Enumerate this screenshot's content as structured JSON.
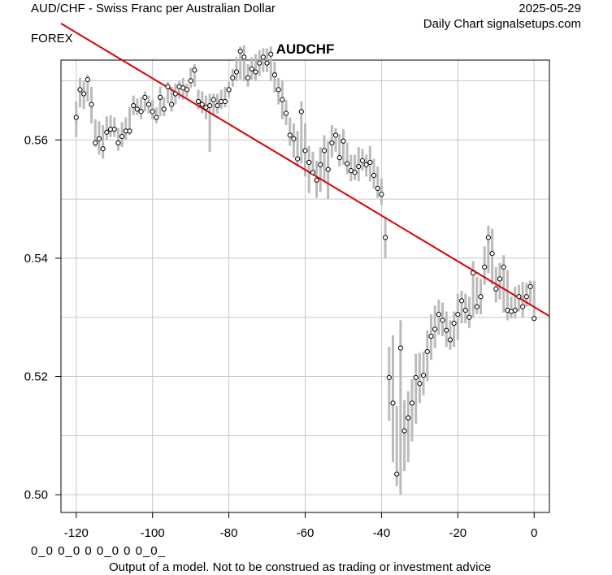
{
  "header": {
    "title_left": "AUD/CHF - Swiss Franc per Australian Dollar",
    "date": "2025-05-29",
    "subtitle_right": "Daily Chart signalsetups.com",
    "category": "FOREX"
  },
  "footer": {
    "code": "0_0 0_0 0 0_0 0 0_0_",
    "disclaimer": "Output of a model. Not to be construed as trading or investment advice"
  },
  "colors": {
    "trend": "#dd0000",
    "bars": "#bbbbbb",
    "grid": "#c8c8c8",
    "points": "#000000"
  },
  "chart_data": {
    "type": "scatter",
    "title": "AUDCHF",
    "xlabel": "",
    "ylabel": "",
    "xlim": [
      -124,
      4
    ],
    "ylim": [
      0.497,
      0.5735
    ],
    "xticks": [
      -120,
      -100,
      -80,
      -60,
      -40,
      -20,
      0
    ],
    "xtick_labels": [
      "-120",
      "-100",
      "-80",
      "-60",
      "-40",
      "-20",
      "0"
    ],
    "yticks": [
      0.5,
      0.52,
      0.54,
      0.56
    ],
    "ytick_labels": [
      "0.50",
      "0.52",
      "0.54",
      "0.56"
    ],
    "grid": true,
    "trend_line": {
      "x": [
        -124,
        4
      ],
      "y": [
        0.5797,
        0.5302
      ]
    },
    "series": [
      {
        "x": [
          -120,
          -119,
          -118,
          -117,
          -116,
          -115,
          -114,
          -113,
          -112,
          -111,
          -110,
          -109,
          -108,
          -107,
          -106,
          -105,
          -104,
          -103,
          -102,
          -101,
          -100,
          -99,
          -98,
          -97,
          -96,
          -95,
          -94,
          -93,
          -92,
          -91,
          -90,
          -89,
          -88,
          -87,
          -86,
          -85,
          -84,
          -83,
          -82,
          -81,
          -80,
          -79,
          -78,
          -77,
          -76,
          -75,
          -74,
          -73,
          -72,
          -71,
          -70,
          -69,
          -68,
          -67,
          -66,
          -65,
          -64,
          -63,
          -62,
          -61,
          -60,
          -59,
          -58,
          -57,
          -56,
          -55,
          -54,
          -53,
          -52,
          -51,
          -50,
          -49,
          -48,
          -47,
          -46,
          -45,
          -44,
          -43,
          -42,
          -41,
          -40,
          -39,
          -38,
          -37,
          -36,
          -35,
          -34,
          -33,
          -32,
          -31,
          -30,
          -29,
          -28,
          -27,
          -26,
          -25,
          -24,
          -23,
          -22,
          -21,
          -20,
          -19,
          -18,
          -17,
          -16,
          -15,
          -14,
          -13,
          -12,
          -11,
          -10,
          -9,
          -8,
          -7,
          -6,
          -5,
          -4,
          -3,
          -2,
          -1,
          0
        ],
        "close": [
          0.5638,
          0.5685,
          0.5678,
          0.5702,
          0.566,
          0.5595,
          0.5602,
          0.5585,
          0.5613,
          0.5618,
          0.5618,
          0.5595,
          0.5606,
          0.5615,
          0.5615,
          0.5658,
          0.5652,
          0.5648,
          0.5672,
          0.566,
          0.5648,
          0.5638,
          0.5672,
          0.5652,
          0.569,
          0.566,
          0.5678,
          0.569,
          0.5688,
          0.5685,
          0.57,
          0.5718,
          0.5665,
          0.566,
          0.5655,
          0.5658,
          0.5668,
          0.5658,
          0.5665,
          0.5665,
          0.5685,
          0.5705,
          0.5715,
          0.575,
          0.574,
          0.5705,
          0.572,
          0.5715,
          0.573,
          0.574,
          0.573,
          0.5745,
          0.571,
          0.5685,
          0.5668,
          0.5645,
          0.5608,
          0.5602,
          0.5568,
          0.5648,
          0.5582,
          0.5562,
          0.5545,
          0.5532,
          0.5558,
          0.5582,
          0.555,
          0.5595,
          0.5608,
          0.557,
          0.5598,
          0.556,
          0.5548,
          0.5545,
          0.5555,
          0.5565,
          0.5558,
          0.5562,
          0.554,
          0.5518,
          0.5508,
          0.5435,
          0.5198,
          0.5155,
          0.5035,
          0.5248,
          0.5108,
          0.513,
          0.5155,
          0.5198,
          0.5188,
          0.5202,
          0.5242,
          0.5268,
          0.528,
          0.5305,
          0.5295,
          0.5278,
          0.5262,
          0.529,
          0.5305,
          0.5328,
          0.5312,
          0.53,
          0.5375,
          0.5318,
          0.5335,
          0.5385,
          0.5435,
          0.5408,
          0.5348,
          0.5365,
          0.5385,
          0.5312,
          0.531,
          0.5312,
          0.5335,
          0.5318,
          0.5335,
          0.5352,
          0.5298
        ],
        "high": [
          0.5665,
          0.5705,
          0.57,
          0.571,
          0.569,
          0.5635,
          0.5632,
          0.5625,
          0.564,
          0.5642,
          0.5638,
          0.562,
          0.563,
          0.5638,
          0.5655,
          0.5675,
          0.567,
          0.5672,
          0.5682,
          0.5675,
          0.5668,
          0.5655,
          0.569,
          0.5672,
          0.5698,
          0.569,
          0.5695,
          0.57,
          0.5705,
          0.5695,
          0.5722,
          0.5728,
          0.5685,
          0.5682,
          0.5675,
          0.5678,
          0.5678,
          0.5678,
          0.5685,
          0.569,
          0.5698,
          0.572,
          0.574,
          0.5758,
          0.576,
          0.5728,
          0.574,
          0.5745,
          0.5752,
          0.5755,
          0.5755,
          0.5758,
          0.5732,
          0.5705,
          0.57,
          0.5668,
          0.5638,
          0.5628,
          0.5615,
          0.5665,
          0.5628,
          0.559,
          0.558,
          0.5565,
          0.5588,
          0.5608,
          0.5598,
          0.5625,
          0.562,
          0.561,
          0.5618,
          0.5595,
          0.5575,
          0.5575,
          0.5588,
          0.5585,
          0.5575,
          0.559,
          0.5568,
          0.5555,
          0.5535,
          0.547,
          0.525,
          0.527,
          0.515,
          0.5295,
          0.516,
          0.5175,
          0.5195,
          0.5238,
          0.524,
          0.5242,
          0.5278,
          0.5305,
          0.532,
          0.533,
          0.5325,
          0.531,
          0.5295,
          0.531,
          0.534,
          0.5345,
          0.534,
          0.5335,
          0.5395,
          0.5368,
          0.5365,
          0.542,
          0.5455,
          0.545,
          0.5385,
          0.5392,
          0.5405,
          0.538,
          0.5335,
          0.5352,
          0.5355,
          0.536,
          0.5358,
          0.5362,
          0.5362
        ],
        "low": [
          0.5605,
          0.5655,
          0.5652,
          0.5665,
          0.5628,
          0.5588,
          0.5575,
          0.5568,
          0.56,
          0.5605,
          0.5605,
          0.5582,
          0.5588,
          0.56,
          0.5608,
          0.5642,
          0.5642,
          0.5635,
          0.5648,
          0.5645,
          0.5635,
          0.5628,
          0.564,
          0.564,
          0.5662,
          0.5648,
          0.566,
          0.567,
          0.5668,
          0.5672,
          0.5688,
          0.569,
          0.5652,
          0.5645,
          0.5635,
          0.558,
          0.564,
          0.5645,
          0.5652,
          0.5655,
          0.5672,
          0.569,
          0.57,
          0.5702,
          0.57,
          0.569,
          0.5702,
          0.57,
          0.5708,
          0.5715,
          0.5715,
          0.57,
          0.568,
          0.566,
          0.5635,
          0.5625,
          0.559,
          0.557,
          0.5555,
          0.556,
          0.5538,
          0.551,
          0.554,
          0.5502,
          0.5512,
          0.553,
          0.55,
          0.557,
          0.558,
          0.5555,
          0.5558,
          0.5542,
          0.553,
          0.5532,
          0.553,
          0.5548,
          0.5538,
          0.553,
          0.5518,
          0.5502,
          0.549,
          0.54,
          0.5125,
          0.5055,
          0.5015,
          0.5,
          0.504,
          0.5055,
          0.509,
          0.512,
          0.5155,
          0.5168,
          0.5192,
          0.5228,
          0.5248,
          0.527,
          0.5268,
          0.525,
          0.5245,
          0.525,
          0.5262,
          0.529,
          0.529,
          0.5282,
          0.53,
          0.5305,
          0.5305,
          0.5355,
          0.5375,
          0.5355,
          0.5325,
          0.533,
          0.5308,
          0.5295,
          0.5298,
          0.5298,
          0.531,
          0.53,
          0.5318,
          0.532,
          0.5295
        ]
      }
    ]
  }
}
